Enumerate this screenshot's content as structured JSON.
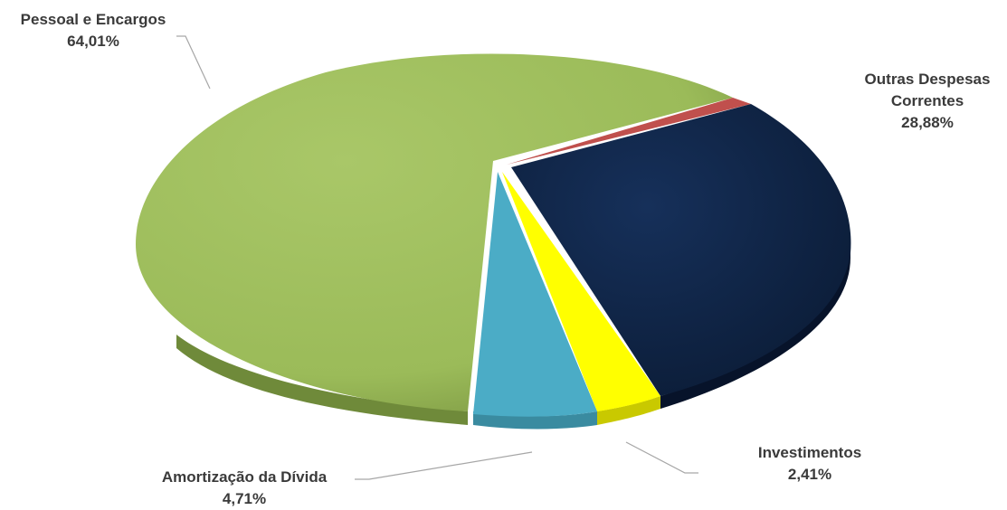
{
  "chart_data": {
    "type": "pie",
    "title": "",
    "slices": [
      {
        "name": "Pessoal e Encargos",
        "label": "64,01%",
        "value": 64.01,
        "color": "#9bbb59"
      },
      {
        "name": "Outras Despesas Correntes",
        "label": "28,88%",
        "value": 28.88,
        "color": "#0f2444"
      },
      {
        "name": "Investimentos",
        "label": "2,41%",
        "value": 2.41,
        "color": "#ffff00"
      },
      {
        "name": "Amortização da Dívida",
        "label": "4,71%",
        "value": 4.71,
        "color": "#4bacc6"
      }
    ],
    "small_slice_color": "#c0504d",
    "legend": "none",
    "style": "3d-exploded"
  },
  "labels": {
    "pessoal": {
      "name": "Pessoal e Encargos",
      "pct": "64,01%"
    },
    "outras": {
      "name_line1": "Outras Despesas",
      "name_line2": "Correntes",
      "pct": "28,88%"
    },
    "investimentos": {
      "name": "Investimentos",
      "pct": "2,41%"
    },
    "amortizacao": {
      "name": "Amortização da Dívida",
      "pct": "4,71%"
    }
  }
}
